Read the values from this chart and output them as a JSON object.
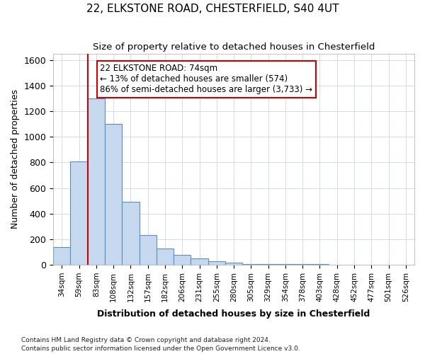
{
  "title1": "22, ELKSTONE ROAD, CHESTERFIELD, S40 4UT",
  "title2": "Size of property relative to detached houses in Chesterfield",
  "xlabel": "Distribution of detached houses by size in Chesterfield",
  "ylabel": "Number of detached properties",
  "footnote1": "Contains HM Land Registry data © Crown copyright and database right 2024.",
  "footnote2": "Contains public sector information licensed under the Open Government Licence v3.0.",
  "bin_labels": [
    "34sqm",
    "59sqm",
    "83sqm",
    "108sqm",
    "132sqm",
    "157sqm",
    "182sqm",
    "206sqm",
    "231sqm",
    "255sqm",
    "280sqm",
    "305sqm",
    "329sqm",
    "354sqm",
    "378sqm",
    "403sqm",
    "428sqm",
    "452sqm",
    "477sqm",
    "501sqm",
    "526sqm"
  ],
  "bar_values": [
    140,
    810,
    1300,
    1100,
    490,
    235,
    130,
    80,
    50,
    30,
    15,
    5,
    5,
    5,
    3,
    3,
    2,
    2,
    2,
    2,
    2
  ],
  "bar_color": "#c5d8ee",
  "bar_edge_color": "#5a8fc0",
  "property_label": "22 ELKSTONE ROAD: 74sqm",
  "annotation_line1": "← 13% of detached houses are smaller (574)",
  "annotation_line2": "86% of semi-detached houses are larger (3,733) →",
  "vline_color": "#cc0000",
  "vline_x_bin": 2.0,
  "ylim": [
    0,
    1650
  ],
  "yticks": [
    0,
    200,
    400,
    600,
    800,
    1000,
    1200,
    1400,
    1600
  ],
  "background_color": "#ffffff",
  "grid_color": "#d0dce8",
  "annotation_box_color": "#ffffff",
  "annotation_box_edge": "#cc0000"
}
